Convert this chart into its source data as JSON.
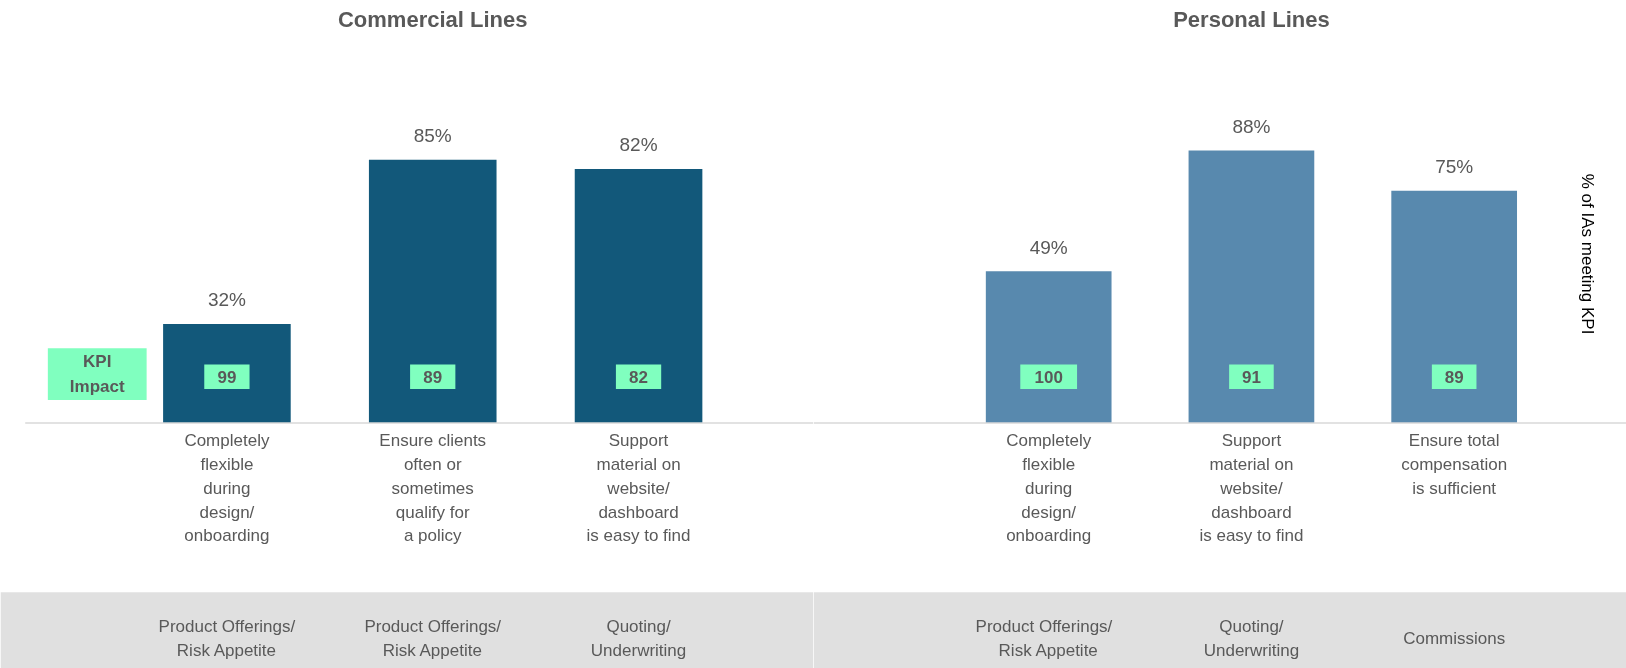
{
  "chart_data": [
    {
      "type": "bar",
      "title": "Commercial Lines",
      "categories": [
        "Completely\nflexible\nduring\ndesign/\nonboarding",
        "Ensure clients\noften or\nsometimes\nqualify for\na policy",
        "Support\nmaterial on\nwebsite/\ndashboard\nis easy to find"
      ],
      "values": [
        32,
        85,
        82
      ],
      "value_labels": [
        "32%",
        "85%",
        "82%"
      ],
      "color": "#12587a",
      "annotations": [
        "KPI Impact",
        "99",
        "89",
        "82",
        "Product Offerings/\nRisk Appetite",
        "Product Offerings/\nRisk Appetite",
        "Quoting/\nUnderwriting"
      ]
    },
    {
      "type": "bar",
      "title": "Personal Lines",
      "ylabel": "% of IAs meeting KPI",
      "categories": [
        "Completely\nflexible\nduring\ndesign/\nonboarding",
        "Support\nmaterial on\nwebsite/\ndashboard\nis easy to find",
        "Ensure total\ncompensation\nis sufficient"
      ],
      "values": [
        49,
        88,
        75
      ],
      "value_labels": [
        "49%",
        "88%",
        "75%"
      ],
      "color": "#5889ae",
      "annotations": [
        "100",
        "91",
        "89",
        "Product   Offerings/\nRisk Appetite",
        "Quoting/\nUnderwriting",
        "Commissions"
      ]
    }
  ]
}
